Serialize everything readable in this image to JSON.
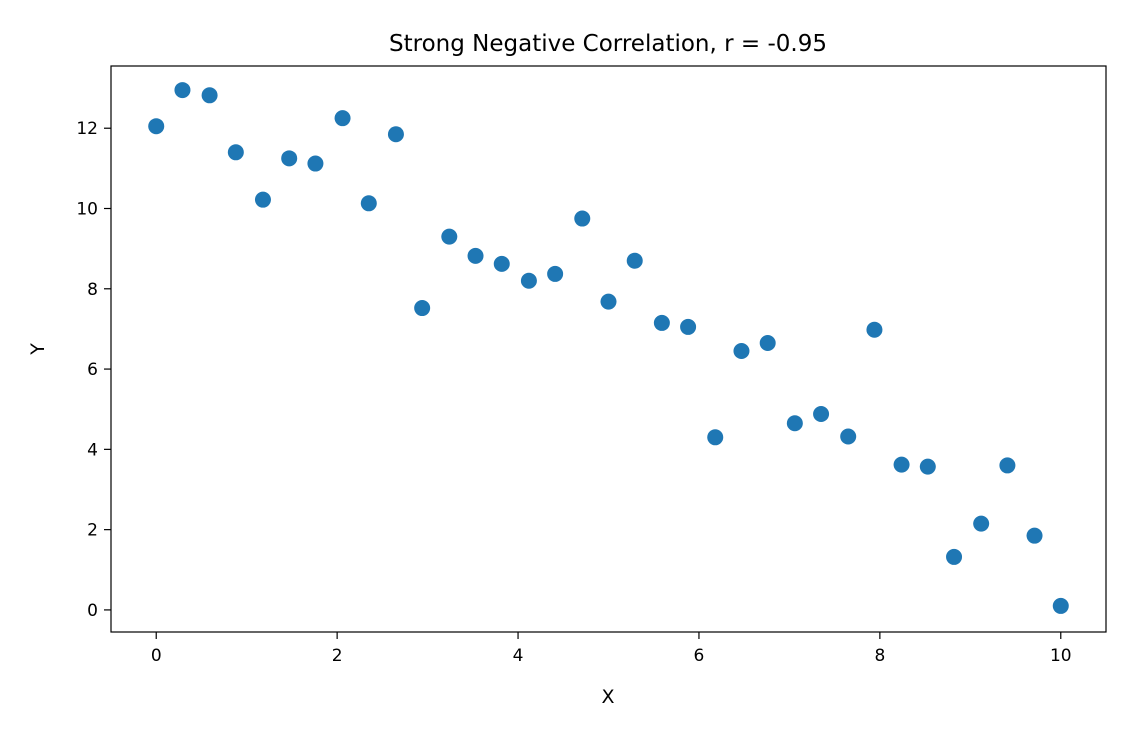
{
  "chart_data": {
    "type": "scatter",
    "title": "Strong Negative Correlation, r = -0.95",
    "xlabel": "X",
    "ylabel": "Y",
    "xlim": [
      -0.5,
      10.5
    ],
    "ylim": [
      -0.55,
      13.55
    ],
    "xticks": [
      0,
      2,
      4,
      6,
      8,
      10
    ],
    "yticks": [
      0,
      2,
      4,
      6,
      8,
      10,
      12
    ],
    "grid": false,
    "legend": "none",
    "point_color": "#1f77b4",
    "points": [
      {
        "x": 0.0,
        "y": 12.05
      },
      {
        "x": 0.29,
        "y": 12.95
      },
      {
        "x": 0.59,
        "y": 12.82
      },
      {
        "x": 0.88,
        "y": 11.4
      },
      {
        "x": 1.18,
        "y": 10.22
      },
      {
        "x": 1.47,
        "y": 11.25
      },
      {
        "x": 1.76,
        "y": 11.12
      },
      {
        "x": 2.06,
        "y": 12.25
      },
      {
        "x": 2.35,
        "y": 10.13
      },
      {
        "x": 2.65,
        "y": 11.85
      },
      {
        "x": 2.94,
        "y": 7.52
      },
      {
        "x": 3.24,
        "y": 9.3
      },
      {
        "x": 3.53,
        "y": 8.82
      },
      {
        "x": 3.82,
        "y": 8.62
      },
      {
        "x": 4.12,
        "y": 8.2
      },
      {
        "x": 4.41,
        "y": 8.37
      },
      {
        "x": 4.71,
        "y": 9.75
      },
      {
        "x": 5.0,
        "y": 7.68
      },
      {
        "x": 5.29,
        "y": 8.7
      },
      {
        "x": 5.59,
        "y": 7.15
      },
      {
        "x": 5.88,
        "y": 7.05
      },
      {
        "x": 6.18,
        "y": 4.3
      },
      {
        "x": 6.47,
        "y": 6.45
      },
      {
        "x": 6.76,
        "y": 6.65
      },
      {
        "x": 7.06,
        "y": 4.65
      },
      {
        "x": 7.35,
        "y": 4.88
      },
      {
        "x": 7.65,
        "y": 4.32
      },
      {
        "x": 7.94,
        "y": 6.98
      },
      {
        "x": 8.24,
        "y": 3.62
      },
      {
        "x": 8.53,
        "y": 3.57
      },
      {
        "x": 8.82,
        "y": 1.32
      },
      {
        "x": 9.12,
        "y": 2.15
      },
      {
        "x": 9.41,
        "y": 3.6
      },
      {
        "x": 9.71,
        "y": 1.85
      },
      {
        "x": 10.0,
        "y": 0.1
      }
    ]
  }
}
